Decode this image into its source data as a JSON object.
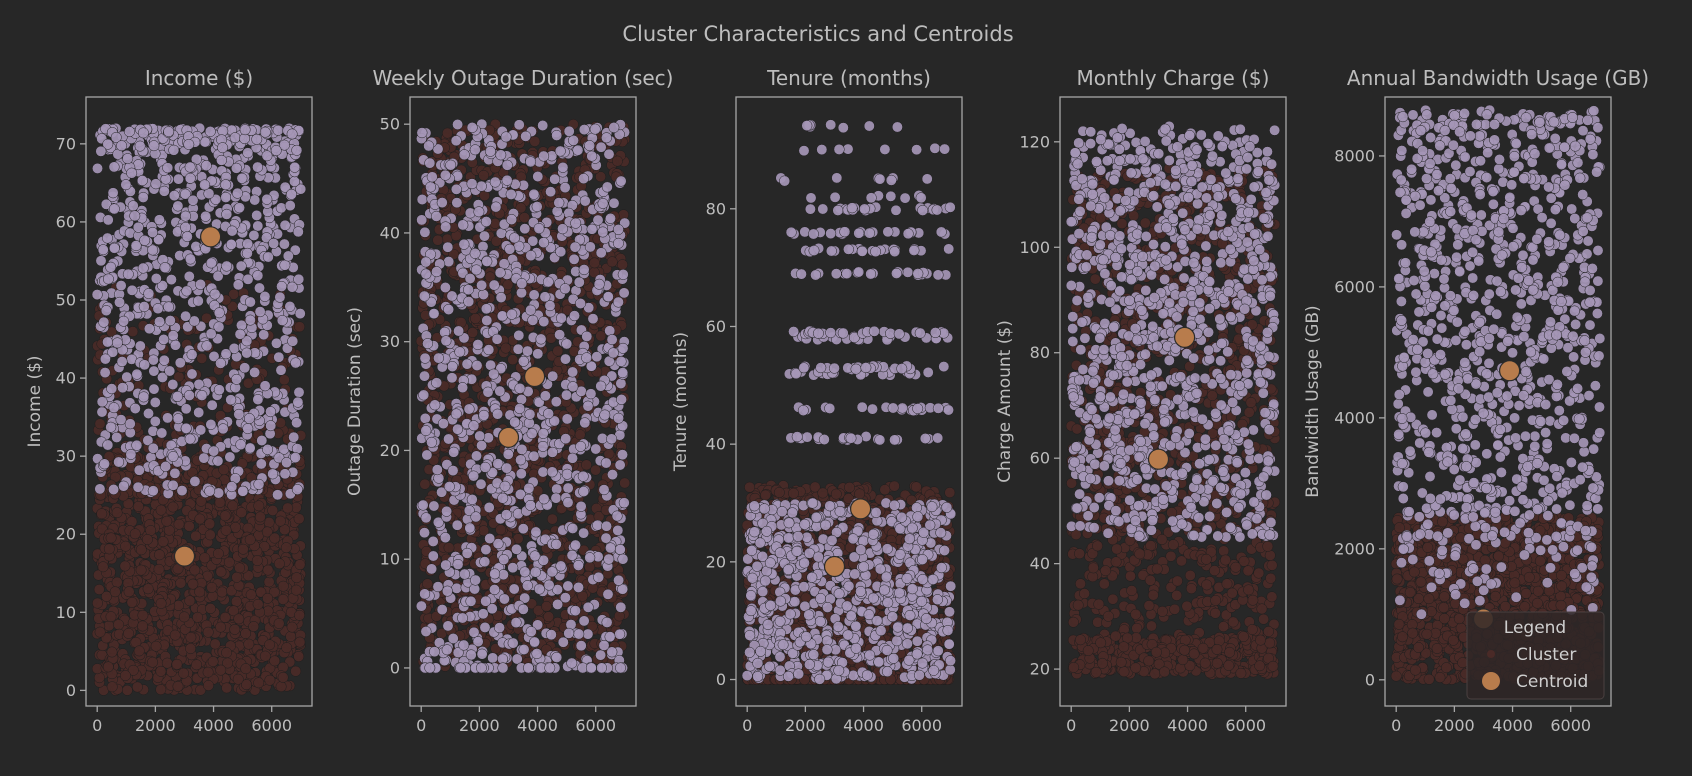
{
  "chart_data": {
    "type": "scatter",
    "title": "Cluster Characteristics and Centroids",
    "colors": {
      "cluster_0": "#4a2a27",
      "cluster_1": "#a596b6",
      "centroid": "#b87c4c",
      "background": "#272727"
    },
    "legend": {
      "title": "Legend",
      "entries": [
        "Cluster",
        "Centroid"
      ],
      "placement": "lower-right"
    },
    "x_range": [
      0,
      7000
    ],
    "xticks": [
      0,
      2000,
      4000,
      6000
    ],
    "panels": [
      {
        "title": "Income ($)",
        "ylabel": "Income ($)",
        "ylim": [
          -2,
          76
        ],
        "yticks": [
          0,
          10,
          20,
          30,
          40,
          50,
          60,
          70
        ],
        "cluster_0": {
          "range": [
            0,
            52
          ],
          "dense_below": 30,
          "count": 1500
        },
        "cluster_1": {
          "range": [
            25,
            72
          ],
          "count": 900
        },
        "centroids": [
          {
            "x": 3000,
            "y": 17.2
          },
          {
            "x": 3900,
            "y": 58.1
          }
        ]
      },
      {
        "title": "Weekly Outage Duration (sec)",
        "ylabel": "Outage Duration (sec)",
        "ylim": [
          -3.5,
          52.5
        ],
        "yticks": [
          0,
          10,
          20,
          30,
          40,
          50
        ],
        "cluster_0": {
          "range": [
            0,
            50
          ],
          "count": 1400
        },
        "cluster_1": {
          "range": [
            0,
            50
          ],
          "count": 1000
        },
        "centroids": [
          {
            "x": 3000,
            "y": 21.2
          },
          {
            "x": 3900,
            "y": 26.8
          }
        ]
      },
      {
        "title": "Tenure (months)",
        "ylabel": "Tenure (months)",
        "ylim": [
          -4.5,
          99
        ],
        "yticks": [
          0,
          20,
          40,
          60,
          80
        ],
        "cluster_0": {
          "range": [
            0,
            33
          ],
          "count": 1300
        },
        "cluster_1": {
          "range": [
            0,
            30
          ],
          "count": 700,
          "bands": [
            41,
            46,
            52,
            53,
            58,
            59,
            69,
            73,
            76,
            80,
            82,
            85,
            90,
            94
          ]
        },
        "centroids": [
          {
            "x": 3000,
            "y": 19.2
          },
          {
            "x": 3900,
            "y": 29.0
          }
        ]
      },
      {
        "title": "Monthly Charge ($)",
        "ylabel": "Charge Amount ($)",
        "ylim": [
          13,
          128.5
        ],
        "yticks": [
          20,
          40,
          60,
          80,
          100,
          120
        ],
        "cluster_0": {
          "range": [
            19,
            115
          ],
          "count": 1400
        },
        "cluster_1": {
          "range": [
            45,
            123
          ],
          "count": 1000
        },
        "centroids": [
          {
            "x": 3000,
            "y": 59.8
          },
          {
            "x": 3900,
            "y": 82.9
          }
        ]
      },
      {
        "title": "Annual Bandwidth Usage (GB)",
        "ylabel": "Bandwidth Usage (GB)",
        "ylim": [
          -400,
          8900
        ],
        "yticks": [
          0,
          2000,
          4000,
          6000,
          8000
        ],
        "cluster_0": {
          "range": [
            0,
            2500
          ],
          "count": 1400
        },
        "cluster_1": {
          "range": [
            1000,
            8700
          ],
          "count": 1000
        },
        "centroids": [
          {
            "x": 3000,
            "y": 930
          },
          {
            "x": 3900,
            "y": 4720
          }
        ]
      }
    ]
  }
}
